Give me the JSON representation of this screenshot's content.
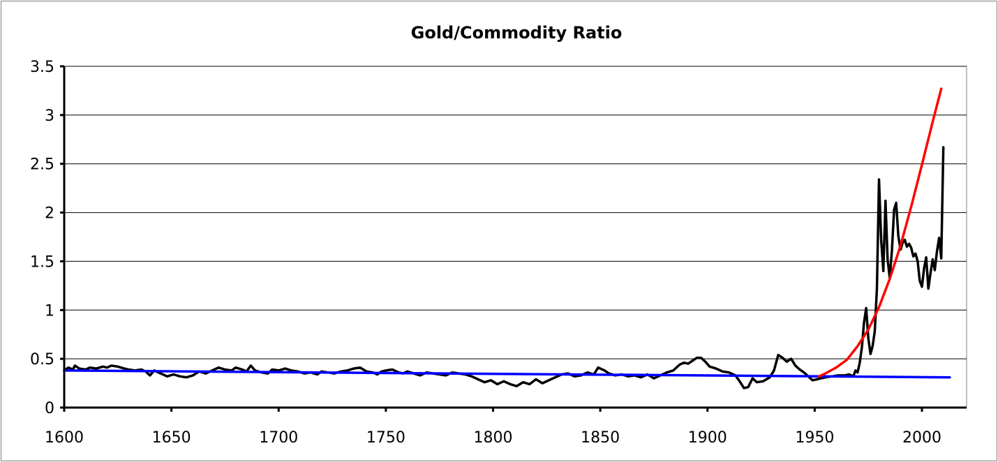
{
  "chart_data": {
    "type": "line",
    "title": "Gold/Commodity Ratio",
    "xlabel": "",
    "ylabel": "",
    "xlim": [
      1600,
      2012
    ],
    "ylim": [
      0,
      3.5
    ],
    "x_ticks": [
      1600,
      1650,
      1700,
      1750,
      1800,
      1850,
      1900,
      1950,
      2000
    ],
    "y_ticks": [
      0,
      0.5,
      1,
      1.5,
      2,
      2.5,
      3,
      3.5
    ],
    "y_tick_labels": [
      "0",
      "0.5",
      "1",
      "1.5",
      "2",
      "2.5",
      "3",
      "3.5"
    ],
    "grid": "horizontal",
    "legend": "none",
    "series": [
      {
        "color": "#000000",
        "points": [
          [
            1600,
            0.38
          ],
          [
            1602,
            0.41
          ],
          [
            1604,
            0.39
          ],
          [
            1605,
            0.43
          ],
          [
            1607,
            0.4
          ],
          [
            1610,
            0.39
          ],
          [
            1612,
            0.41
          ],
          [
            1615,
            0.4
          ],
          [
            1618,
            0.42
          ],
          [
            1620,
            0.41
          ],
          [
            1622,
            0.43
          ],
          [
            1625,
            0.42
          ],
          [
            1628,
            0.4
          ],
          [
            1630,
            0.39
          ],
          [
            1633,
            0.38
          ],
          [
            1636,
            0.39
          ],
          [
            1638,
            0.37
          ],
          [
            1640,
            0.33
          ],
          [
            1642,
            0.38
          ],
          [
            1645,
            0.35
          ],
          [
            1648,
            0.32
          ],
          [
            1651,
            0.34
          ],
          [
            1654,
            0.32
          ],
          [
            1657,
            0.31
          ],
          [
            1660,
            0.33
          ],
          [
            1663,
            0.37
          ],
          [
            1666,
            0.35
          ],
          [
            1669,
            0.38
          ],
          [
            1672,
            0.41
          ],
          [
            1675,
            0.39
          ],
          [
            1678,
            0.38
          ],
          [
            1680,
            0.41
          ],
          [
            1683,
            0.39
          ],
          [
            1685,
            0.37
          ],
          [
            1687,
            0.43
          ],
          [
            1689,
            0.38
          ],
          [
            1692,
            0.36
          ],
          [
            1695,
            0.35
          ],
          [
            1697,
            0.39
          ],
          [
            1700,
            0.38
          ],
          [
            1703,
            0.4
          ],
          [
            1706,
            0.38
          ],
          [
            1709,
            0.37
          ],
          [
            1712,
            0.35
          ],
          [
            1715,
            0.36
          ],
          [
            1718,
            0.34
          ],
          [
            1720,
            0.37
          ],
          [
            1723,
            0.36
          ],
          [
            1726,
            0.35
          ],
          [
            1729,
            0.37
          ],
          [
            1732,
            0.38
          ],
          [
            1735,
            0.4
          ],
          [
            1738,
            0.41
          ],
          [
            1741,
            0.37
          ],
          [
            1744,
            0.36
          ],
          [
            1746,
            0.34
          ],
          [
            1748,
            0.37
          ],
          [
            1750,
            0.38
          ],
          [
            1753,
            0.39
          ],
          [
            1756,
            0.36
          ],
          [
            1758,
            0.35
          ],
          [
            1760,
            0.37
          ],
          [
            1763,
            0.35
          ],
          [
            1766,
            0.33
          ],
          [
            1769,
            0.36
          ],
          [
            1772,
            0.35
          ],
          [
            1775,
            0.34
          ],
          [
            1778,
            0.33
          ],
          [
            1781,
            0.36
          ],
          [
            1784,
            0.35
          ],
          [
            1787,
            0.34
          ],
          [
            1790,
            0.32
          ],
          [
            1793,
            0.29
          ],
          [
            1796,
            0.26
          ],
          [
            1799,
            0.28
          ],
          [
            1802,
            0.24
          ],
          [
            1805,
            0.27
          ],
          [
            1808,
            0.24
          ],
          [
            1811,
            0.22
          ],
          [
            1814,
            0.26
          ],
          [
            1817,
            0.24
          ],
          [
            1820,
            0.29
          ],
          [
            1823,
            0.25
          ],
          [
            1826,
            0.28
          ],
          [
            1829,
            0.31
          ],
          [
            1832,
            0.34
          ],
          [
            1835,
            0.35
          ],
          [
            1838,
            0.32
          ],
          [
            1841,
            0.33
          ],
          [
            1844,
            0.36
          ],
          [
            1847,
            0.34
          ],
          [
            1849,
            0.41
          ],
          [
            1852,
            0.38
          ],
          [
            1854,
            0.35
          ],
          [
            1857,
            0.33
          ],
          [
            1860,
            0.34
          ],
          [
            1863,
            0.32
          ],
          [
            1866,
            0.33
          ],
          [
            1869,
            0.31
          ],
          [
            1872,
            0.34
          ],
          [
            1875,
            0.3
          ],
          [
            1878,
            0.33
          ],
          [
            1881,
            0.36
          ],
          [
            1884,
            0.38
          ],
          [
            1887,
            0.44
          ],
          [
            1889,
            0.46
          ],
          [
            1891,
            0.45
          ],
          [
            1893,
            0.48
          ],
          [
            1895,
            0.51
          ],
          [
            1897,
            0.51
          ],
          [
            1899,
            0.47
          ],
          [
            1901,
            0.42
          ],
          [
            1904,
            0.4
          ],
          [
            1907,
            0.37
          ],
          [
            1910,
            0.36
          ],
          [
            1913,
            0.33
          ],
          [
            1915,
            0.27
          ],
          [
            1917,
            0.2
          ],
          [
            1919,
            0.21
          ],
          [
            1921,
            0.3
          ],
          [
            1923,
            0.26
          ],
          [
            1926,
            0.27
          ],
          [
            1929,
            0.31
          ],
          [
            1931,
            0.38
          ],
          [
            1933,
            0.54
          ],
          [
            1935,
            0.51
          ],
          [
            1937,
            0.47
          ],
          [
            1939,
            0.5
          ],
          [
            1941,
            0.43
          ],
          [
            1943,
            0.39
          ],
          [
            1945,
            0.36
          ],
          [
            1947,
            0.32
          ],
          [
            1949,
            0.28
          ],
          [
            1951,
            0.29
          ],
          [
            1953,
            0.3
          ],
          [
            1955,
            0.31
          ],
          [
            1958,
            0.32
          ],
          [
            1961,
            0.33
          ],
          [
            1964,
            0.33
          ],
          [
            1966,
            0.34
          ],
          [
            1968,
            0.32
          ],
          [
            1969,
            0.38
          ],
          [
            1970,
            0.36
          ],
          [
            1971,
            0.46
          ],
          [
            1972,
            0.62
          ],
          [
            1973,
            0.87
          ],
          [
            1974,
            1.02
          ],
          [
            1975,
            0.71
          ],
          [
            1976,
            0.55
          ],
          [
            1977,
            0.63
          ],
          [
            1978,
            0.78
          ],
          [
            1979,
            1.22
          ],
          [
            1980,
            2.34
          ],
          [
            1981,
            1.72
          ],
          [
            1982,
            1.4
          ],
          [
            1983,
            2.12
          ],
          [
            1984,
            1.52
          ],
          [
            1985,
            1.33
          ],
          [
            1986,
            1.61
          ],
          [
            1987,
            2.03
          ],
          [
            1988,
            2.1
          ],
          [
            1989,
            1.76
          ],
          [
            1990,
            1.62
          ],
          [
            1991,
            1.69
          ],
          [
            1992,
            1.72
          ],
          [
            1993,
            1.65
          ],
          [
            1994,
            1.68
          ],
          [
            1995,
            1.64
          ],
          [
            1996,
            1.55
          ],
          [
            1997,
            1.58
          ],
          [
            1998,
            1.5
          ],
          [
            1999,
            1.3
          ],
          [
            2000,
            1.24
          ],
          [
            2001,
            1.43
          ],
          [
            2002,
            1.54
          ],
          [
            2003,
            1.22
          ],
          [
            2004,
            1.38
          ],
          [
            2005,
            1.52
          ],
          [
            2006,
            1.41
          ],
          [
            2007,
            1.6
          ],
          [
            2008,
            1.74
          ],
          [
            2009,
            1.53
          ],
          [
            2010,
            2.67
          ]
        ]
      },
      {
        "color": "#0000ff",
        "points": [
          [
            1600,
            0.38
          ],
          [
            2013,
            0.31
          ]
        ]
      },
      {
        "color": "#ff0000",
        "points": [
          [
            1952,
            0.32
          ],
          [
            1955,
            0.35
          ],
          [
            1960,
            0.41
          ],
          [
            1965,
            0.49
          ],
          [
            1970,
            0.63
          ],
          [
            1975,
            0.8
          ],
          [
            1980,
            1.03
          ],
          [
            1985,
            1.32
          ],
          [
            1990,
            1.66
          ],
          [
            1995,
            2.06
          ],
          [
            2000,
            2.49
          ],
          [
            2005,
            2.93
          ],
          [
            2009,
            3.27
          ]
        ]
      }
    ]
  }
}
